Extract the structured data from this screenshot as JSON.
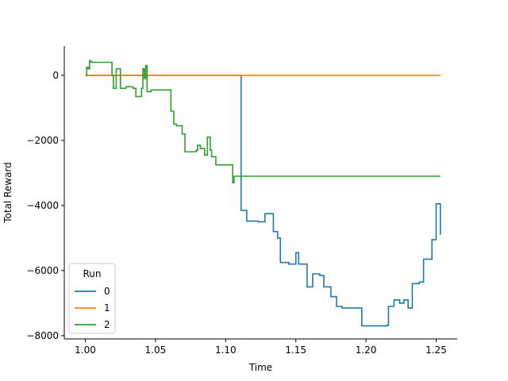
{
  "chart_data": {
    "type": "line",
    "xlabel": "Time",
    "ylabel": "Total Reward",
    "xlim": [
      0.985,
      1.265
    ],
    "ylim": [
      -8100,
      900
    ],
    "xticks": [
      1.0,
      1.05,
      1.1,
      1.15,
      1.2,
      1.25
    ],
    "xtick_labels": [
      "1.00",
      "1.05",
      "1.10",
      "1.15",
      "1.20",
      "1.25"
    ],
    "yticks": [
      0,
      -2000,
      -4000,
      -6000,
      -8000
    ],
    "ytick_labels": [
      "0",
      "−2000",
      "−4000",
      "−6000",
      "−8000"
    ],
    "grid": false,
    "legend": {
      "title": "Run",
      "placement": "lower-left"
    },
    "series": [
      {
        "name": "0",
        "color": "#1f77b4",
        "step": true,
        "x": [
          1.0,
          1.003,
          1.11,
          1.111,
          1.115,
          1.123,
          1.128,
          1.134,
          1.137,
          1.139,
          1.145,
          1.15,
          1.152,
          1.158,
          1.162,
          1.167,
          1.17,
          1.175,
          1.179,
          1.183,
          1.197,
          1.208,
          1.215,
          1.216,
          1.22,
          1.224,
          1.227,
          1.23,
          1.233,
          1.238,
          1.241,
          1.247,
          1.25,
          1.253
        ],
        "y": [
          0,
          0,
          0,
          -4150,
          -4480,
          -4500,
          -4250,
          -4800,
          -5000,
          -5750,
          -5800,
          -5450,
          -5800,
          -6500,
          -6100,
          -6150,
          -6500,
          -6800,
          -7100,
          -7150,
          -7700,
          -7700,
          -7680,
          -7100,
          -6900,
          -7000,
          -6900,
          -7150,
          -6400,
          -6350,
          -5650,
          -5050,
          -3950,
          -4900
        ]
      },
      {
        "name": "1",
        "color": "#ff7f0e",
        "step": true,
        "x": [
          1.0,
          1.253
        ],
        "y": [
          0,
          0
        ]
      },
      {
        "name": "2",
        "color": "#2ca02c",
        "step": true,
        "x": [
          1.0,
          1.001,
          1.002,
          1.003,
          1.004,
          1.019,
          1.02,
          1.022,
          1.025,
          1.029,
          1.034,
          1.036,
          1.04,
          1.041,
          1.042,
          1.043,
          1.044,
          1.047,
          1.058,
          1.061,
          1.063,
          1.065,
          1.069,
          1.071,
          1.079,
          1.08,
          1.082,
          1.085,
          1.087,
          1.089,
          1.09,
          1.093,
          1.104,
          1.105,
          1.106,
          1.253
        ],
        "y": [
          0,
          250,
          200,
          450,
          400,
          0,
          -400,
          200,
          -400,
          -350,
          -400,
          -650,
          -400,
          200,
          -100,
          300,
          -500,
          -450,
          -450,
          -1100,
          -1500,
          -1550,
          -1800,
          -2350,
          -2300,
          -2150,
          -2250,
          -2450,
          -1900,
          -2300,
          -2500,
          -2750,
          -2750,
          -3300,
          -3100,
          -3100
        ]
      }
    ]
  }
}
